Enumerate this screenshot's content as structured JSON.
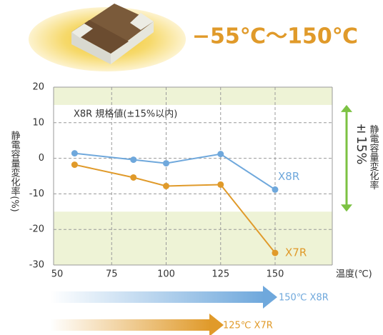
{
  "chart_data": {
    "type": "line",
    "title": "−55℃〜150℃",
    "annotation": "X8R 規格値(±15%以内)",
    "y_label": "静電容量変化率(%)",
    "x_label": "温度(℃)",
    "band_label": "±15%",
    "band_axis_label": "静電容量変化率",
    "band": [
      -15,
      15
    ],
    "band_color": "#eef3d6",
    "x": [
      58,
      85,
      100,
      125,
      150
    ],
    "series": [
      {
        "name": "X8R",
        "color": "#6fa8dc",
        "values": [
          1.4,
          -0.4,
          -1.4,
          1.2,
          -8.8
        ]
      },
      {
        "name": "X7R",
        "color": "#e09a2a",
        "values": [
          -1.8,
          -5.4,
          -7.8,
          -7.4,
          -26.6
        ]
      }
    ],
    "xlim": [
      50,
      150
    ],
    "xticks": [
      50,
      75,
      100,
      125,
      150
    ],
    "ylim": [
      -30,
      20
    ],
    "yticks": [
      -30,
      -20,
      -10,
      0,
      10,
      20
    ],
    "grid": true,
    "ranges": [
      {
        "label": "150℃ X8R",
        "color": "#6fa8dc"
      },
      {
        "label": "125℃ X7R",
        "color": "#e09a2a"
      }
    ]
  }
}
